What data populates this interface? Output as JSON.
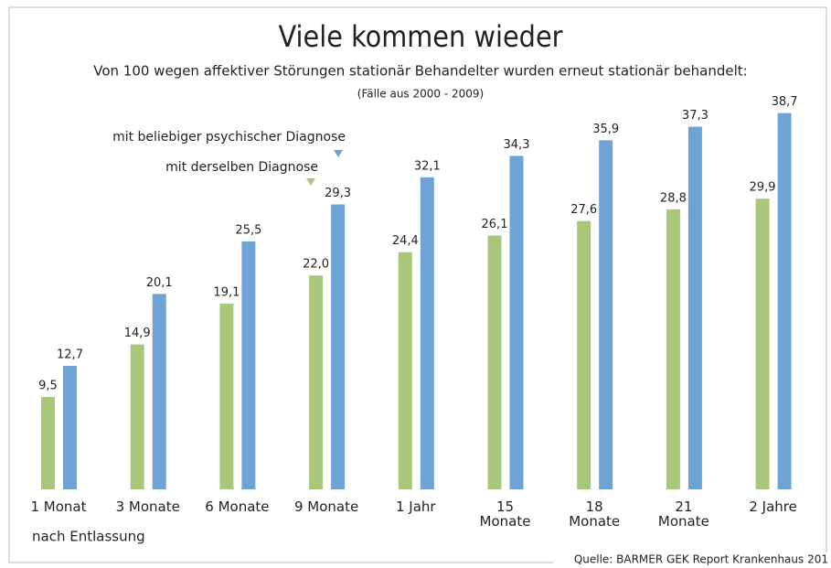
{
  "chart_data": {
    "type": "bar",
    "title": "Viele kommen wieder",
    "subtitle": "Von 100 wegen affektiver Störungen stationär Behandelter wurden erneut stationär behandelt:",
    "note": "(Fälle aus 2000 - 2009)",
    "x_label": "nach Entlassung",
    "source": "Quelle: BARMER GEK Report Krankenhaus 201",
    "categories": [
      "1 Monat",
      "3 Monate",
      "6 Monate",
      "9 Monate",
      "1 Jahr",
      "15\nMonate",
      "18\nMonate",
      "21\nMonate",
      "2 Jahre"
    ],
    "series": [
      {
        "name": "mit derselben Diagnose",
        "color": "#a9c77a",
        "values": [
          9.5,
          14.9,
          19.1,
          22.0,
          24.4,
          26.1,
          27.6,
          28.8,
          29.9
        ],
        "value_labels": [
          "9,5",
          "14,9",
          "19,1",
          "22,0",
          "24,4",
          "26,1",
          "27,6",
          "28,8",
          "29,9"
        ]
      },
      {
        "name": "mit beliebiger psychischer Diagnose",
        "color": "#6fa3d6",
        "values": [
          12.7,
          20.1,
          25.5,
          29.3,
          32.1,
          34.3,
          35.9,
          37.3,
          38.7
        ],
        "value_labels": [
          "12,7",
          "20,1",
          "25,5",
          "29,3",
          "32,1",
          "34,3",
          "35,9",
          "37,3",
          "38,7"
        ]
      }
    ]
  }
}
